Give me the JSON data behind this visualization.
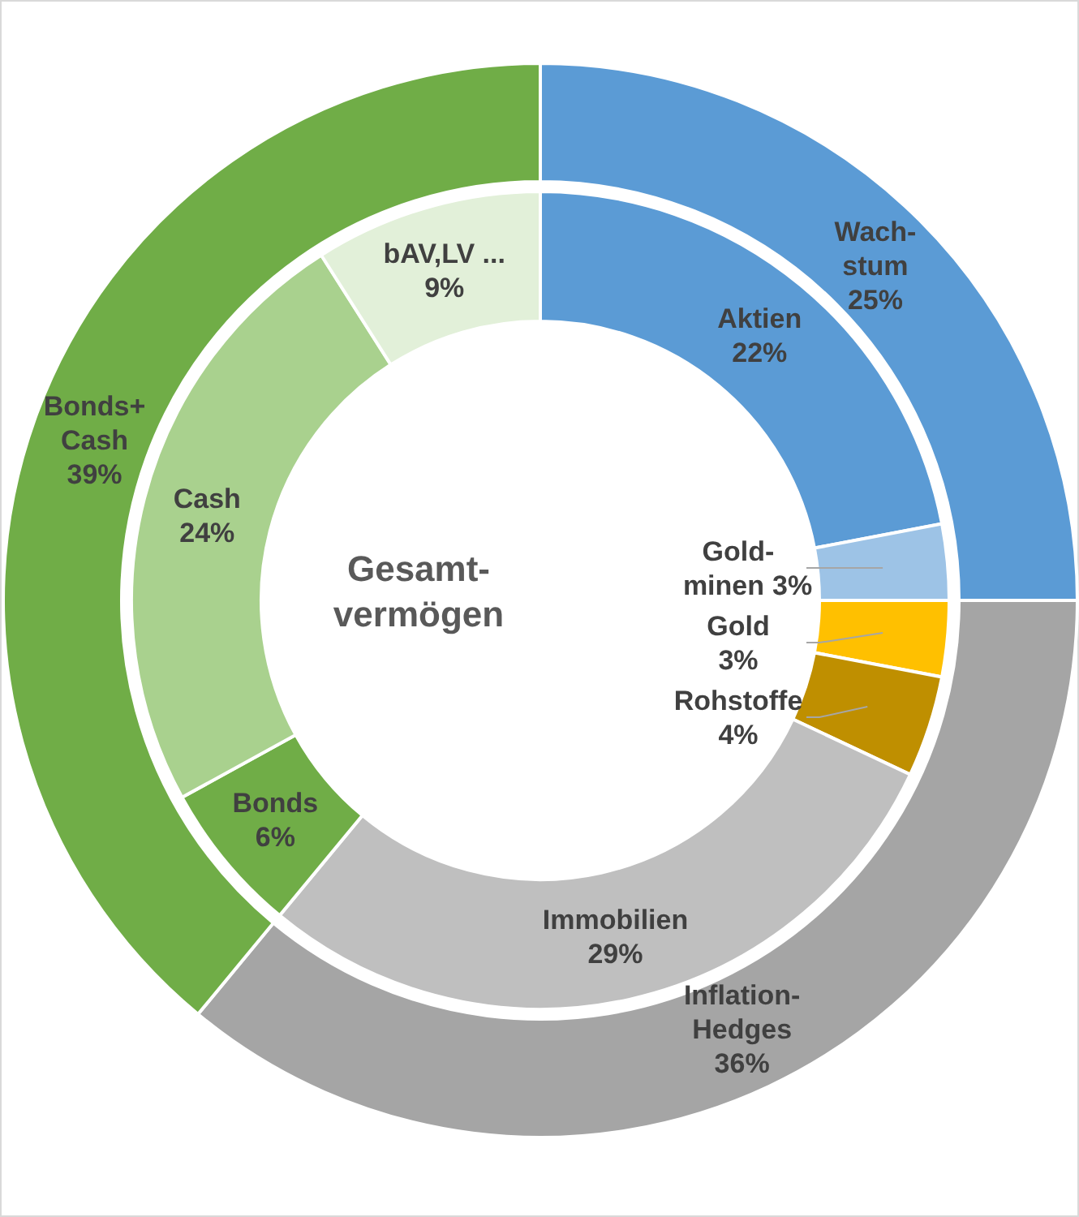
{
  "chart_data": [
    {
      "type": "donut",
      "title": "Gesamt-\nvermögen",
      "categories": [
        "Aktien",
        "Gold-\nminen",
        "Gold",
        "Rohstoffe",
        "Immobilien",
        "Bonds",
        "Cash",
        "bAV,LV ..."
      ],
      "values": [
        22,
        3,
        3,
        4,
        29,
        6,
        24,
        9
      ],
      "value_labels": [
        "22%",
        "3%",
        "3%",
        "4%",
        "29%",
        "6%",
        "24%",
        "9%"
      ],
      "colors": [
        "#5b9bd5",
        "#9dc3e6",
        "#ffc000",
        "#bf8f00",
        "#bfbfbf",
        "#70ad47",
        "#a9d18e",
        "#e2f0d9"
      ]
    },
    {
      "type": "donut",
      "categories": [
        "Wach-\nstum",
        "Inflation-\nHedges",
        "Bonds+\nCash"
      ],
      "values": [
        25,
        36,
        39
      ],
      "value_labels": [
        "25%",
        "36%",
        "39%"
      ],
      "colors": [
        "#5b9bd5",
        "#a5a5a5",
        "#70ad47"
      ]
    }
  ]
}
